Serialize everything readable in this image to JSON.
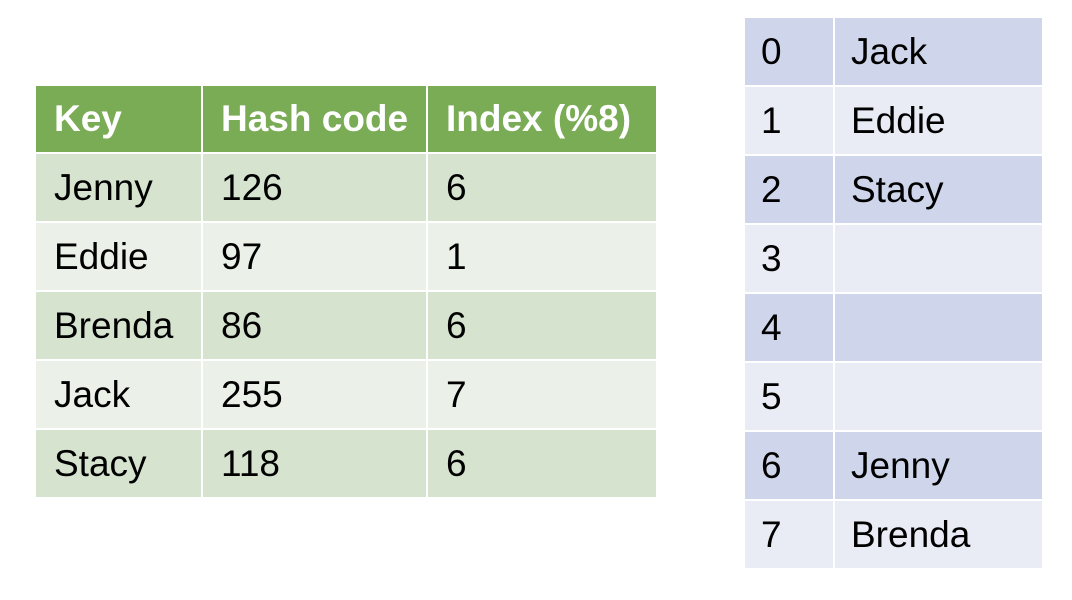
{
  "key_table": {
    "headers": [
      "Key",
      "Hash code",
      "Index (%8)"
    ],
    "rows": [
      [
        "Jenny",
        "126",
        "6"
      ],
      [
        "Eddie",
        "97",
        "1"
      ],
      [
        "Brenda",
        "86",
        "6"
      ],
      [
        "Jack",
        "255",
        "7"
      ],
      [
        "Stacy",
        "118",
        "6"
      ]
    ]
  },
  "bucket_table": {
    "rows": [
      [
        "0",
        "Jack"
      ],
      [
        "1",
        "Eddie"
      ],
      [
        "2",
        "Stacy"
      ],
      [
        "3",
        ""
      ],
      [
        "4",
        ""
      ],
      [
        "5",
        ""
      ],
      [
        "6",
        "Jenny"
      ],
      [
        "7",
        "Brenda"
      ]
    ]
  },
  "colors": {
    "header_green": "#7aab55",
    "row_green_dark": "#d5e3cf",
    "row_green_light": "#ebf1e9",
    "row_blue_dark": "#cfd5ea",
    "row_blue_light": "#e9ebf5"
  }
}
